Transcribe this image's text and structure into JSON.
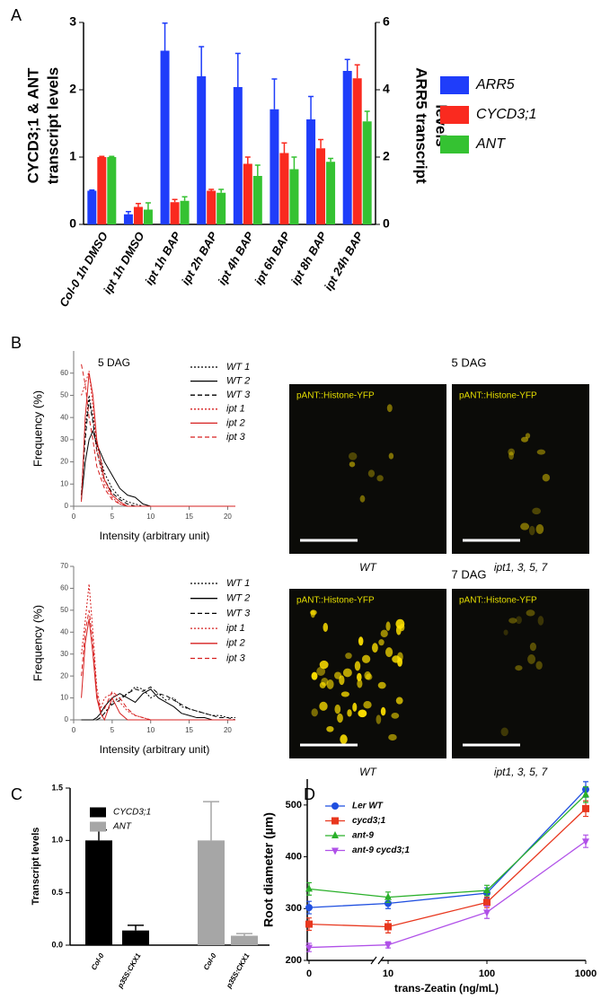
{
  "panels": [
    "A",
    "B",
    "C",
    "D"
  ],
  "micrographs": [
    {
      "title": "5 DAG",
      "panels": [
        {
          "label": "pANT::Histone-YFP",
          "caption": "WT"
        },
        {
          "label": "pANT::Histone-YFP",
          "caption": "ipt1, 3, 5, 7"
        }
      ]
    },
    {
      "title": "7 DAG",
      "panels": [
        {
          "label": "pANT::Histone-YFP",
          "caption": "WT"
        },
        {
          "label": "pANT::Histone-YFP",
          "caption": "ipt1, 3, 5, 7"
        }
      ]
    }
  ],
  "chart_data": [
    {
      "type": "bar",
      "ylabel": [
        "CYCD3;1 & ANT",
        "transcript levels"
      ],
      "y2label": [
        "ARR5 transcript",
        "levels"
      ],
      "categories": [
        "Col-0 1h DMSO",
        "ipt 1h DMSO",
        "ipt 1h BAP",
        "ipt 2h BAP",
        "ipt 4h BAP",
        "ipt 6h BAP",
        "ipt 8h BAP",
        "ipt 24h BAP"
      ],
      "series": [
        {
          "name": "ARR5",
          "color": "#1f3dfa",
          "axis": "y2",
          "values": [
            1.0,
            0.3,
            5.16,
            4.4,
            4.08,
            3.42,
            3.12,
            4.56
          ],
          "errors": [
            0.02,
            0.08,
            0.82,
            0.88,
            1.0,
            0.9,
            0.68,
            0.34
          ]
        },
        {
          "name": "CYCD3;1",
          "color": "#fa2a1f",
          "values": [
            1.0,
            0.26,
            0.33,
            0.5,
            0.9,
            1.06,
            1.13,
            2.17
          ],
          "errors": [
            0.01,
            0.05,
            0.04,
            0.02,
            0.1,
            0.15,
            0.13,
            0.2
          ]
        },
        {
          "name": "ANT",
          "color": "#35c232",
          "values": [
            1.0,
            0.22,
            0.35,
            0.47,
            0.72,
            0.82,
            0.93,
            1.53
          ],
          "errors": [
            0.01,
            0.1,
            0.06,
            0.05,
            0.16,
            0.18,
            0.05,
            0.15
          ]
        }
      ],
      "ylim": [
        0,
        3
      ],
      "yticks": [
        0,
        1,
        2,
        3
      ],
      "y2lim": [
        0,
        6
      ],
      "y2ticks": [
        0,
        2,
        4,
        6
      ]
    },
    {
      "type": "line",
      "title": "5 DAG",
      "ylabel": "Frequency (%)",
      "xlabel": "Intensity (arbitrary unit)",
      "x": [
        1,
        1.5,
        2,
        2.5,
        3,
        4,
        5,
        6,
        7,
        8,
        9,
        10,
        21
      ],
      "xlim": [
        0,
        21
      ],
      "xticks": [
        0,
        5,
        10,
        15,
        20
      ],
      "ylim": [
        0,
        70
      ],
      "yticks": [
        0,
        10,
        20,
        30,
        40,
        50,
        60
      ],
      "series": [
        {
          "name": "WT 1",
          "color": "#000000",
          "dash": "dotted",
          "values": [
            5,
            35,
            50,
            40,
            28,
            15,
            8,
            4,
            2,
            1,
            0,
            0,
            0
          ]
        },
        {
          "name": "WT 2",
          "color": "#000000",
          "dash": "solid",
          "values": [
            3,
            20,
            30,
            34,
            28,
            20,
            14,
            8,
            5,
            4,
            1,
            0,
            0
          ]
        },
        {
          "name": "WT 3",
          "color": "#000000",
          "dash": "dashed",
          "values": [
            5,
            30,
            48,
            38,
            25,
            12,
            6,
            3,
            1,
            0,
            0,
            0,
            0
          ]
        },
        {
          "name": "ipt 1",
          "color": "#d62020",
          "dash": "dotted",
          "values": [
            50,
            55,
            61,
            45,
            25,
            10,
            4,
            1,
            0,
            0,
            0,
            0,
            0
          ]
        },
        {
          "name": "ipt 2",
          "color": "#d62020",
          "dash": "solid",
          "values": [
            2,
            40,
            60,
            50,
            30,
            12,
            5,
            2,
            0,
            0,
            0,
            0,
            0
          ]
        },
        {
          "name": "ipt 3",
          "color": "#d62020",
          "dash": "dashed",
          "values": [
            64,
            55,
            40,
            30,
            18,
            8,
            3,
            1,
            0,
            0,
            0,
            0,
            0
          ]
        }
      ]
    },
    {
      "type": "line",
      "ylabel": "Frequency (%)",
      "xlabel": "Intensity (arbitrary unit)",
      "x": [
        1,
        1.5,
        2,
        2.5,
        3,
        3.5,
        4,
        5,
        6,
        7,
        8,
        9,
        10,
        11,
        12,
        13,
        14,
        15,
        16,
        17,
        18,
        19,
        20,
        21
      ],
      "xlim": [
        0,
        21
      ],
      "xticks": [
        0,
        5,
        10,
        15,
        20
      ],
      "ylim": [
        0,
        70
      ],
      "yticks": [
        0,
        10,
        20,
        30,
        40,
        50,
        60,
        70
      ],
      "series": [
        {
          "name": "WT 1",
          "color": "#000000",
          "dash": "dotted",
          "values": [
            0,
            0,
            0,
            0,
            0,
            1,
            3,
            8,
            10,
            12,
            15,
            14,
            10,
            12,
            9,
            10,
            6,
            5,
            4,
            3,
            2,
            2,
            1,
            1
          ]
        },
        {
          "name": "WT 2",
          "color": "#000000",
          "dash": "solid",
          "values": [
            0,
            0,
            0,
            0,
            1,
            3,
            6,
            10,
            12,
            10,
            8,
            12,
            14,
            10,
            8,
            6,
            3,
            2,
            1,
            1,
            0,
            0,
            0,
            0
          ]
        },
        {
          "name": "WT 3",
          "color": "#000000",
          "dash": "dashed",
          "values": [
            0,
            0,
            0,
            0,
            0,
            1,
            3,
            7,
            9,
            12,
            14,
            13,
            15,
            12,
            11,
            9,
            7,
            5,
            4,
            3,
            2,
            1,
            1,
            0
          ]
        },
        {
          "name": "ipt 1",
          "color": "#d62020",
          "dash": "dotted",
          "values": [
            30,
            45,
            62,
            40,
            15,
            5,
            10,
            12,
            8,
            4,
            2,
            1,
            0,
            0,
            0,
            0,
            0,
            0,
            0,
            0,
            0,
            0,
            0,
            0
          ]
        },
        {
          "name": "ipt 2",
          "color": "#d62020",
          "dash": "solid",
          "values": [
            10,
            35,
            46,
            30,
            10,
            3,
            0,
            10,
            3,
            0,
            0,
            0,
            0,
            0,
            0,
            0,
            0,
            0,
            0,
            0,
            0,
            0,
            0,
            0
          ]
        },
        {
          "name": "ipt 3",
          "color": "#d62020",
          "dash": "dashed",
          "values": [
            20,
            40,
            50,
            35,
            12,
            4,
            5,
            13,
            10,
            5,
            2,
            1,
            0,
            0,
            0,
            0,
            0,
            0,
            0,
            0,
            0,
            0,
            0,
            0
          ]
        }
      ]
    },
    {
      "type": "bar",
      "ylabel": "Transcript levels",
      "categories": [
        "Col-0",
        "p35S:CKX1",
        "Col-0",
        "p35S:CKX1"
      ],
      "series": [
        {
          "name": "CYCD3;1",
          "color": "#000000",
          "values": [
            1.0,
            0.14,
            null,
            null
          ],
          "errors": [
            0.1,
            0.05,
            null,
            null
          ]
        },
        {
          "name": "ANT",
          "color": "#a6a6a6",
          "values": [
            null,
            null,
            1.0,
            0.09
          ],
          "errors": [
            null,
            null,
            0.37,
            0.02
          ]
        }
      ],
      "ylim": [
        0,
        1.5
      ],
      "yticks": [
        {
          "value": 0,
          "label": "0.0"
        },
        0.5,
        {
          "value": 1,
          "label": "1.0"
        },
        1.5
      ]
    },
    {
      "type": "line",
      "ylabel": "Root diameter (µm)",
      "xlabel": "trans-Zeatin (ng/mL)",
      "x": [
        0,
        10,
        100,
        1000
      ],
      "xlim": [
        0,
        1000
      ],
      "xticks": [
        0,
        10,
        100,
        1000
      ],
      "log_x": true,
      "axis_break": true,
      "ylim": [
        200,
        550
      ],
      "yticks": [
        200,
        300,
        400,
        500
      ],
      "series": [
        {
          "name": "Ler WT",
          "color": "#1f4fe0",
          "marker": "circle",
          "values": [
            302,
            310,
            330,
            530
          ],
          "errors": [
            12,
            10,
            10,
            15
          ]
        },
        {
          "name": "cycd3;1",
          "color": "#e8371e",
          "marker": "square",
          "values": [
            270,
            265,
            312,
            493
          ],
          "errors": [
            12,
            12,
            10,
            15
          ]
        },
        {
          "name": "ant-9",
          "color": "#2ab02a",
          "marker": "triangle-up",
          "values": [
            338,
            322,
            335,
            520
          ],
          "errors": [
            12,
            10,
            10,
            15
          ]
        },
        {
          "name": "ant-9 cycd3;1",
          "color": "#b050e8",
          "marker": "triangle-down",
          "values": [
            225,
            230,
            293,
            430
          ],
          "errors": [
            8,
            6,
            12,
            12
          ]
        }
      ]
    }
  ]
}
